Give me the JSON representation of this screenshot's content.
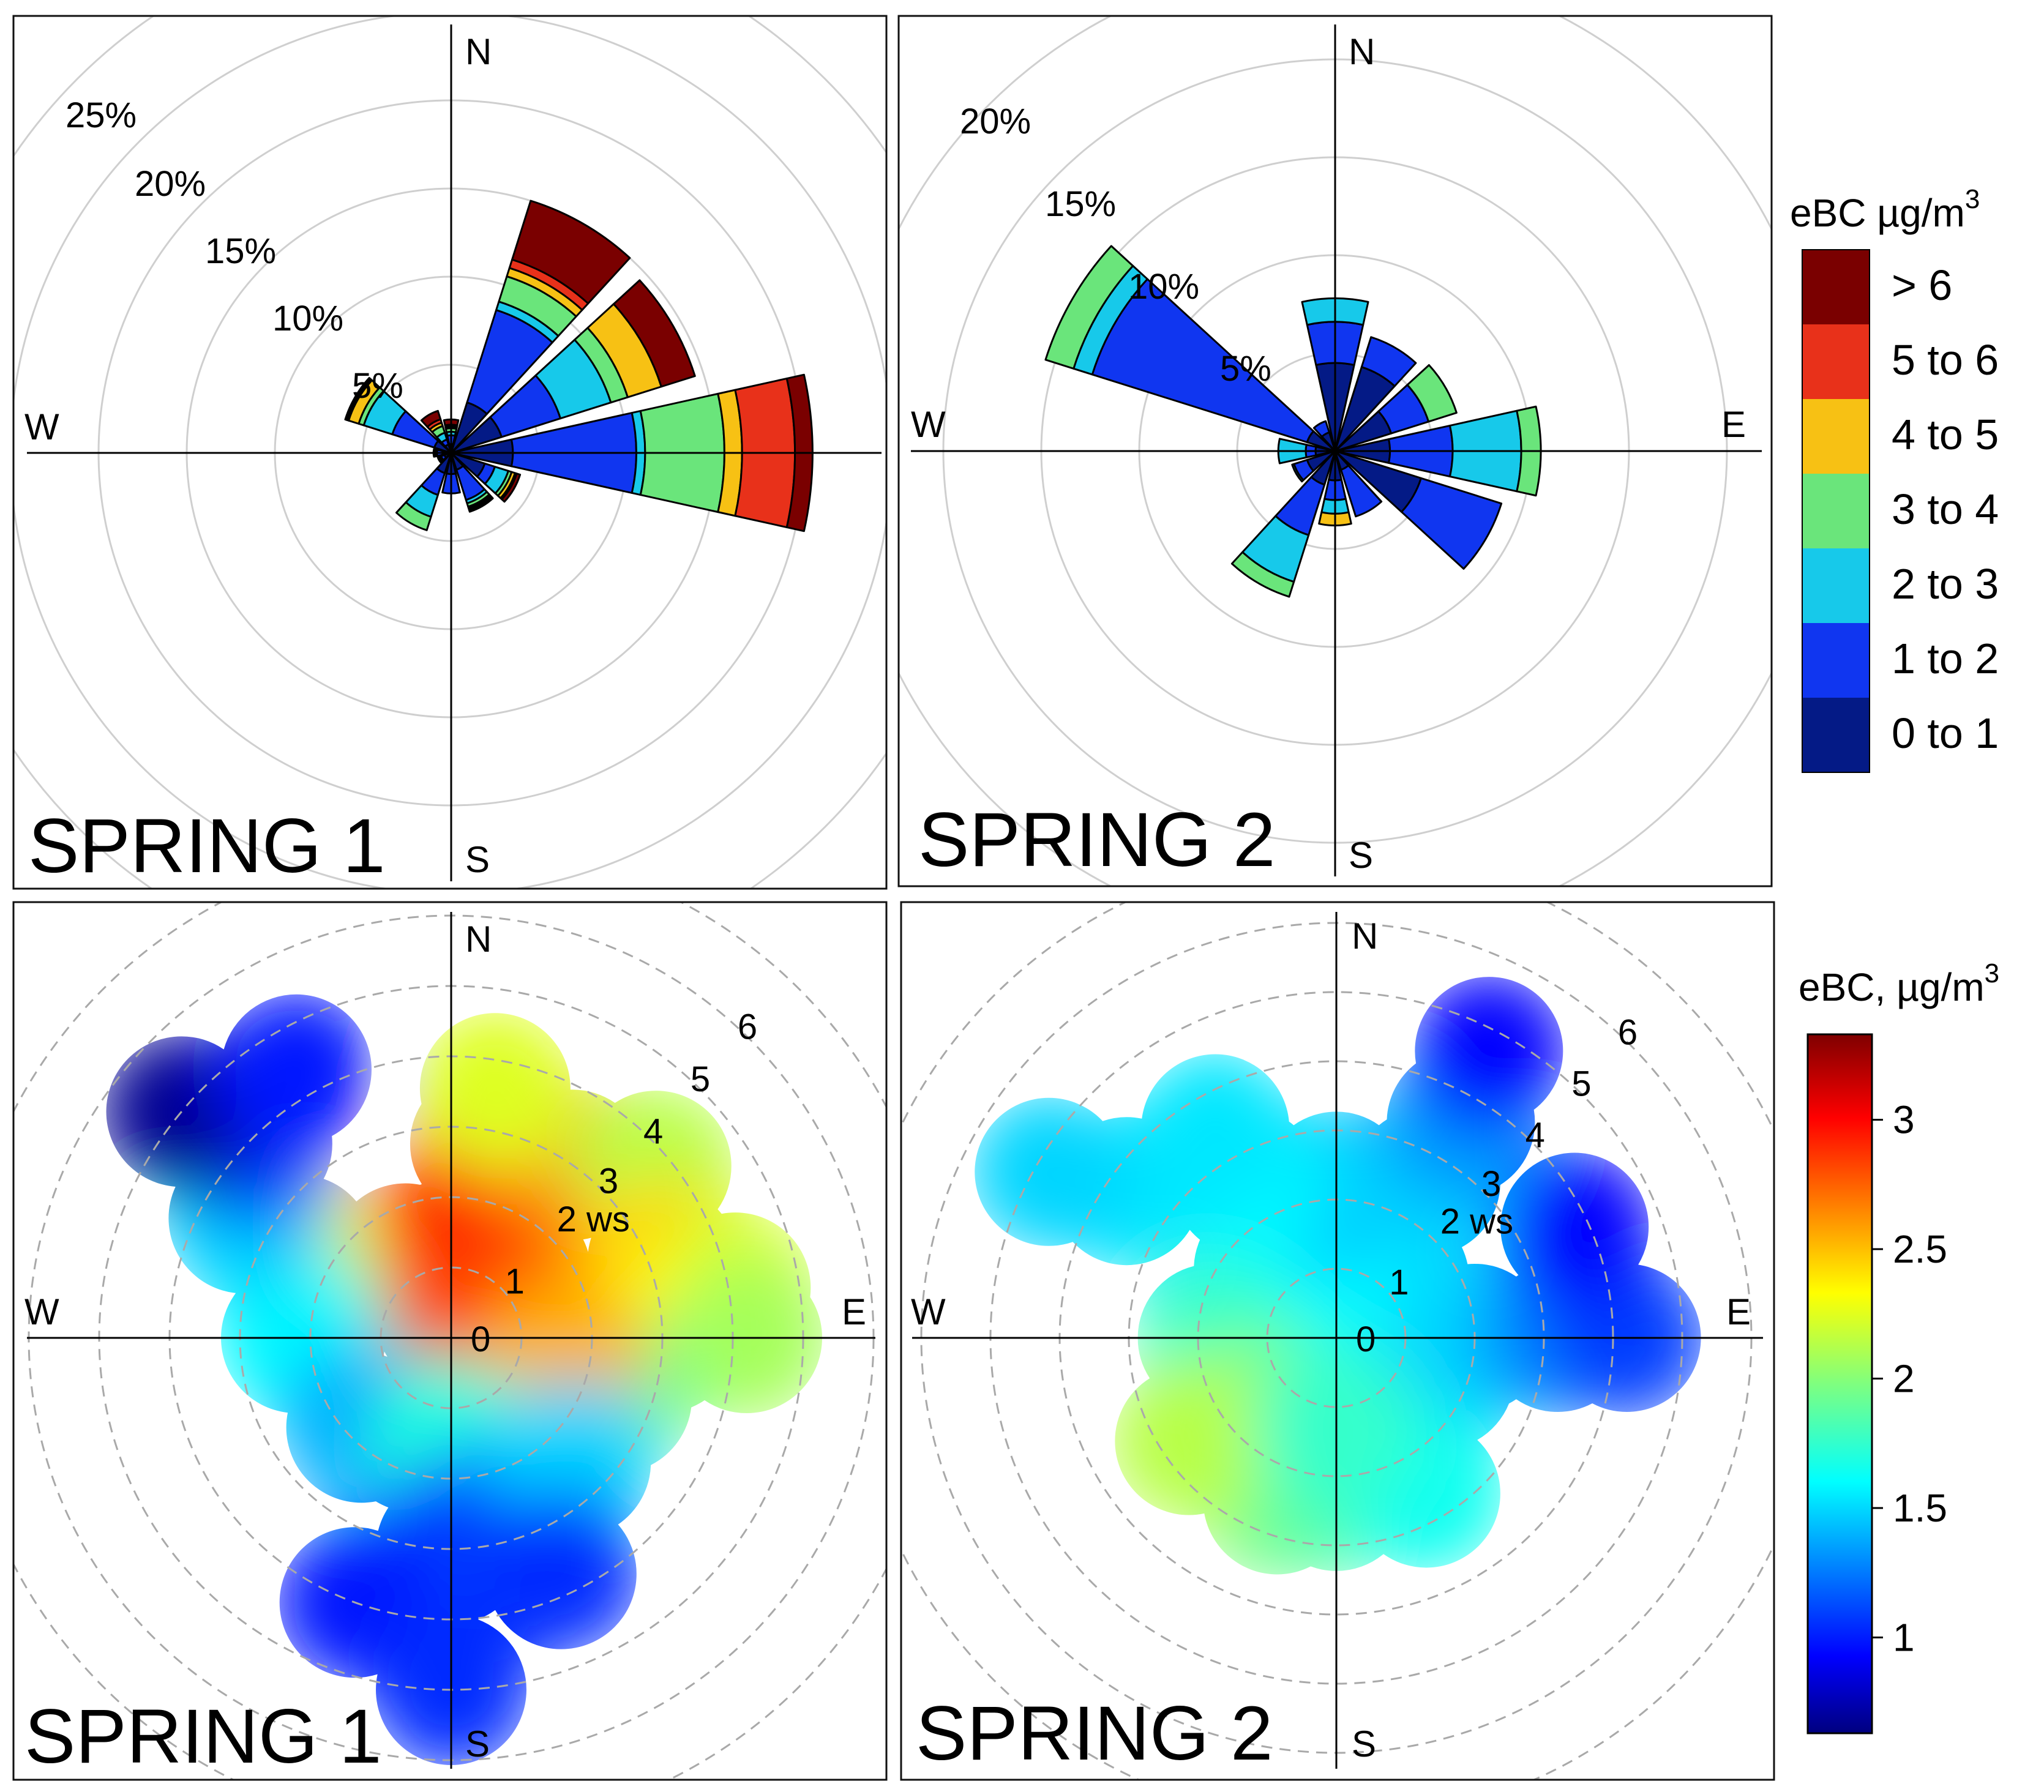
{
  "figure": {
    "season_labels": [
      "SPRING 1",
      "SPRING 2"
    ],
    "compass": {
      "n": "N",
      "s": "S",
      "e": "E",
      "w": "W"
    }
  },
  "legend_windrose": {
    "title": "eBC µg/m",
    "title_sup": "3",
    "bins": [
      {
        "label": "> 6",
        "color": "#7a0000"
      },
      {
        "label": "5 to 6",
        "color": "#e8311a"
      },
      {
        "label": "4 to 5",
        "color": "#f7c114"
      },
      {
        "label": "3 to 4",
        "color": "#6ae57b"
      },
      {
        "label": "2 to 3",
        "color": "#17c9ea"
      },
      {
        "label": "1 to 2",
        "color": "#1036f0"
      },
      {
        "label": "0 to 1",
        "color": "#041a86"
      }
    ]
  },
  "colorbar": {
    "title": "eBC, µg/m",
    "title_sup": "3",
    "ticks": [
      {
        "label": "3",
        "value": 3
      },
      {
        "label": "2.5",
        "value": 2.5
      },
      {
        "label": "2",
        "value": 2
      },
      {
        "label": "1.5",
        "value": 1.5
      },
      {
        "label": "1",
        "value": 1
      }
    ]
  },
  "chart_data": [
    {
      "type": "windrose",
      "title": "SPRING 1",
      "ring_labels": [
        "5%",
        "10%",
        "15%",
        "20%",
        "25%"
      ],
      "ring_values": [
        5,
        10,
        15,
        20,
        25
      ],
      "unit": "% frequency",
      "bins": [
        "0 to 1",
        "1 to 2",
        "2 to 3",
        "3 to 4",
        "4 to 5",
        "5 to 6",
        "> 6"
      ],
      "sectors": [
        {
          "dir": 0,
          "cum": [
            0.5,
            1.0,
            1.2,
            1.4,
            1.5,
            1.6,
            1.9
          ]
        },
        {
          "dir": 30,
          "cum": [
            3,
            8.5,
            9,
            10.5,
            11,
            11.5,
            15
          ]
        },
        {
          "dir": 60,
          "cum": [
            3,
            6.5,
            9.5,
            10.5,
            12.5,
            12.5,
            14.5
          ]
        },
        {
          "dir": 90,
          "cum": [
            3.5,
            10.5,
            11,
            15.5,
            16.5,
            19.5,
            20.5
          ]
        },
        {
          "dir": 120,
          "cum": [
            2,
            2.6,
            3.4,
            3.6,
            3.8,
            3.9,
            4.1
          ]
        },
        {
          "dir": 150,
          "cum": [
            1,
            2.8,
            3.0,
            3.2,
            3.3,
            3.4,
            3.5
          ]
        },
        {
          "dir": 180,
          "cum": [
            1.2,
            2.3,
            2.3,
            2.3,
            2.3,
            2.3,
            2.3
          ]
        },
        {
          "dir": 210,
          "cum": [
            1.2,
            2.5,
            3.8,
            4.6,
            4.6,
            4.6,
            4.6
          ]
        },
        {
          "dir": 240,
          "cum": [
            0.4,
            0.6,
            0.7,
            0.8,
            0.8,
            0.8,
            0.8
          ]
        },
        {
          "dir": 270,
          "cum": [
            0.5,
            0.8,
            0.9,
            1.0,
            1.0,
            1.0,
            1.0
          ]
        },
        {
          "dir": 300,
          "cum": [
            1,
            3.5,
            5.2,
            5.5,
            6.1,
            6.2,
            6.3
          ]
        },
        {
          "dir": 330,
          "cum": [
            0.5,
            0.8,
            1.2,
            1.6,
            1.8,
            2.0,
            2.5
          ]
        }
      ]
    },
    {
      "type": "windrose",
      "title": "SPRING 2",
      "ring_labels": [
        "5%",
        "10%",
        "15%",
        "20%"
      ],
      "ring_values": [
        5,
        10,
        15,
        20
      ],
      "unit": "% frequency",
      "bins": [
        "0 to 1",
        "1 to 2",
        "2 to 3",
        "3 to 4",
        "4 to 5",
        "5 to 6",
        "> 6"
      ],
      "sectors": [
        {
          "dir": 0,
          "cum": [
            4.5,
            6.6,
            7.8,
            7.8,
            7.8,
            7.8,
            7.8
          ]
        },
        {
          "dir": 30,
          "cum": [
            4.5,
            6.1,
            6.1,
            6.1,
            6.1,
            6.1,
            6.1
          ]
        },
        {
          "dir": 60,
          "cum": [
            3,
            5.0,
            5.0,
            6.5,
            6.5,
            6.5,
            6.5
          ]
        },
        {
          "dir": 90,
          "cum": [
            2.8,
            6,
            9.5,
            10.5,
            10.5,
            10.5,
            10.5
          ]
        },
        {
          "dir": 120,
          "cum": [
            4.6,
            8.9,
            8.9,
            8.9,
            8.9,
            8.9,
            8.9
          ]
        },
        {
          "dir": 150,
          "cum": [
            1,
            3.5,
            3.5,
            3.5,
            3.5,
            3.5,
            3.5
          ]
        },
        {
          "dir": 180,
          "cum": [
            1.5,
            2.5,
            3.2,
            3.2,
            3.8,
            3.8,
            3.8
          ]
        },
        {
          "dir": 210,
          "cum": [
            1.8,
            4.5,
            7,
            7.8,
            7.8,
            7.8,
            7.8
          ]
        },
        {
          "dir": 240,
          "cum": [
            1.5,
            2.2,
            2.3,
            2.3,
            2.3,
            2.3,
            2.3
          ]
        },
        {
          "dir": 270,
          "cum": [
            1.0,
            1.5,
            2.9,
            2.9,
            2.9,
            2.9,
            2.9
          ]
        },
        {
          "dir": 300,
          "cum": [
            1.5,
            13.0,
            14.0,
            15.5,
            15.5,
            15.5,
            15.5
          ]
        },
        {
          "dir": 330,
          "cum": [
            1.0,
            1.6,
            1.6,
            1.6,
            1.6,
            1.6,
            1.6
          ]
        }
      ]
    },
    {
      "type": "polar_heatmap",
      "title": "SPRING 1",
      "radial_variable": "ws",
      "ring_labels": [
        "0",
        "1",
        "2 ws",
        "3",
        "4",
        "5",
        "6"
      ],
      "ring_values": [
        0,
        1,
        2,
        3,
        4,
        5,
        6
      ],
      "color_range": [
        0.6,
        3.3
      ],
      "cells": [
        {
          "dir": 20,
          "ws": 1.8,
          "v": 3.25
        },
        {
          "dir": 0,
          "ws": 1.2,
          "v": 3.1
        },
        {
          "dir": 45,
          "ws": 1.3,
          "v": 3.0
        },
        {
          "dir": 70,
          "ws": 1.2,
          "v": 2.9
        },
        {
          "dir": 330,
          "ws": 1.3,
          "v": 2.9
        },
        {
          "dir": 0,
          "ws": 0.3,
          "v": 2.8
        },
        {
          "dir": 10,
          "ws": 2.8,
          "v": 2.9
        },
        {
          "dir": 35,
          "ws": 3.0,
          "v": 2.6
        },
        {
          "dir": 50,
          "ws": 3.8,
          "v": 2.1
        },
        {
          "dir": 10,
          "ws": 3.6,
          "v": 2.2
        },
        {
          "dir": 70,
          "ws": 3.2,
          "v": 2.4
        },
        {
          "dir": 80,
          "ws": 4.1,
          "v": 2.2
        },
        {
          "dir": 90,
          "ws": 3.0,
          "v": 2.3
        },
        {
          "dir": 90,
          "ws": 4.2,
          "v": 2.05
        },
        {
          "dir": 110,
          "ws": 2.5,
          "v": 1.9
        },
        {
          "dir": 100,
          "ws": 1.6,
          "v": 2.5
        },
        {
          "dir": 300,
          "ws": 2.5,
          "v": 2.2
        },
        {
          "dir": 270,
          "ws": 2.0,
          "v": 1.9
        },
        {
          "dir": 270,
          "ws": 2.2,
          "v": 1.6
        },
        {
          "dir": 300,
          "ws": 3.4,
          "v": 1.5
        },
        {
          "dir": 315,
          "ws": 3.9,
          "v": 1.1
        },
        {
          "dir": 310,
          "ws": 5.0,
          "v": 0.65
        },
        {
          "dir": 330,
          "ws": 4.4,
          "v": 1.0
        },
        {
          "dir": 200,
          "ws": 1.5,
          "v": 1.8
        },
        {
          "dir": 225,
          "ws": 1.8,
          "v": 1.4
        },
        {
          "dir": 180,
          "ws": 1.5,
          "v": 1.7
        },
        {
          "dir": 165,
          "ws": 2.6,
          "v": 1.4
        },
        {
          "dir": 180,
          "ws": 3.0,
          "v": 1.1
        },
        {
          "dir": 135,
          "ws": 2.5,
          "v": 1.5
        },
        {
          "dir": 155,
          "ws": 3.7,
          "v": 1.05
        },
        {
          "dir": 200,
          "ws": 4.0,
          "v": 1.0
        },
        {
          "dir": 180,
          "ws": 5.0,
          "v": 1.05
        }
      ]
    },
    {
      "type": "polar_heatmap",
      "title": "SPRING 2",
      "radial_variable": "ws",
      "ring_labels": [
        "0",
        "1",
        "2 ws",
        "3",
        "4",
        "5",
        "6"
      ],
      "ring_values": [
        0,
        1,
        2,
        3,
        4,
        5,
        6
      ],
      "color_range": [
        0.6,
        3.3
      ],
      "cells": [
        {
          "dir": 0,
          "ws": 0.5,
          "v": 1.7
        },
        {
          "dir": 45,
          "ws": 1.2,
          "v": 1.6
        },
        {
          "dir": 315,
          "ws": 1.4,
          "v": 1.6
        },
        {
          "dir": 0,
          "ws": 2.2,
          "v": 1.45
        },
        {
          "dir": 270,
          "ws": 1.8,
          "v": 1.75
        },
        {
          "dir": 225,
          "ws": 1.5,
          "v": 1.95
        },
        {
          "dir": 200,
          "ws": 2.5,
          "v": 1.95
        },
        {
          "dir": 180,
          "ws": 2.3,
          "v": 1.85
        },
        {
          "dir": 235,
          "ws": 2.6,
          "v": 2.1
        },
        {
          "dir": 135,
          "ws": 1.4,
          "v": 1.6
        },
        {
          "dir": 110,
          "ws": 1.6,
          "v": 1.55
        },
        {
          "dir": 90,
          "ws": 2.0,
          "v": 1.5
        },
        {
          "dir": 90,
          "ws": 3.2,
          "v": 1.3
        },
        {
          "dir": 90,
          "ws": 4.2,
          "v": 1.1
        },
        {
          "dir": 65,
          "ws": 3.8,
          "v": 0.95
        },
        {
          "dir": 30,
          "ws": 2.6,
          "v": 1.5
        },
        {
          "dir": 30,
          "ws": 3.6,
          "v": 1.35
        },
        {
          "dir": 28,
          "ws": 4.7,
          "v": 0.95
        },
        {
          "dir": 330,
          "ws": 2.6,
          "v": 1.6
        },
        {
          "dir": 330,
          "ws": 3.5,
          "v": 1.55
        },
        {
          "dir": 305,
          "ws": 3.7,
          "v": 1.55
        },
        {
          "dir": 300,
          "ws": 4.8,
          "v": 1.5
        },
        {
          "dir": 150,
          "ws": 2.6,
          "v": 1.65
        },
        {
          "dir": 180,
          "ws": 1.3,
          "v": 1.75
        }
      ]
    }
  ]
}
